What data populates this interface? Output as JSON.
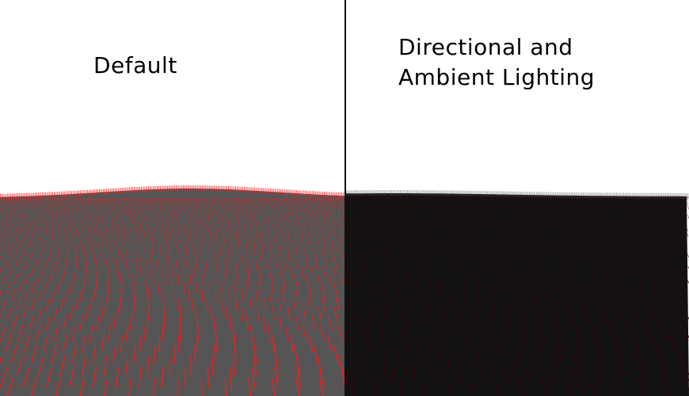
{
  "panels": [
    {
      "id": "default",
      "title": "Default",
      "ground_color": "#555555",
      "accent_color": "#ff1a1a"
    },
    {
      "id": "lit",
      "title_line1": "Directional and",
      "title_line2": "Ambient Lighting",
      "ground_color": "#121212",
      "accent_color": "#3a0606"
    }
  ],
  "divider_color": "#111111",
  "sky_color": "#ffffff"
}
